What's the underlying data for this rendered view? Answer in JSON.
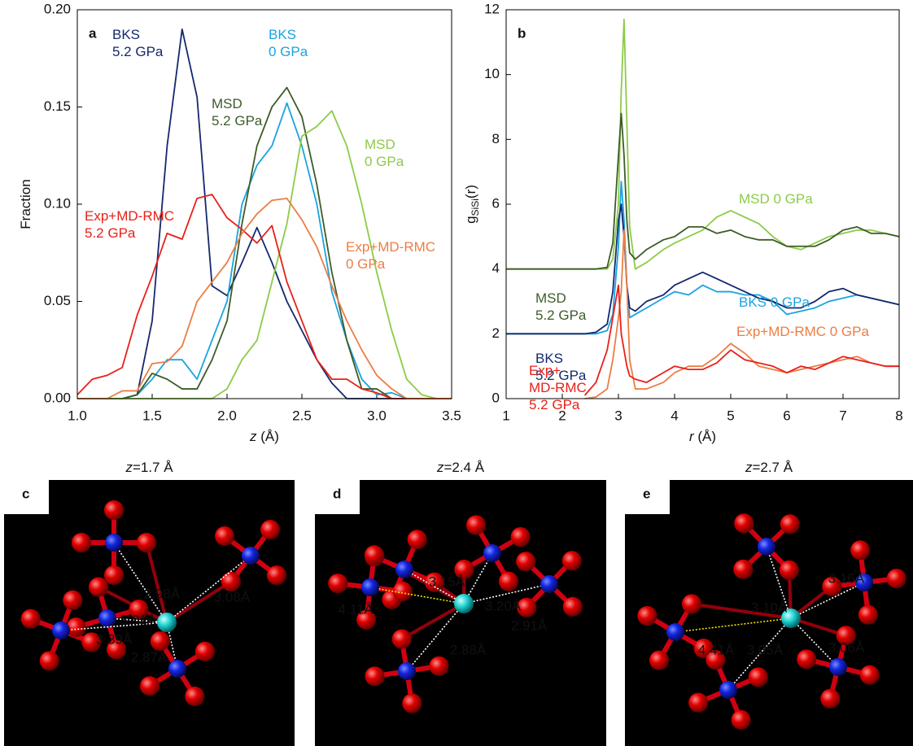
{
  "chart_data": [
    {
      "type": "line",
      "panel_letter": "a",
      "ylabel": "Fraction",
      "xlabel_var": "z",
      "xlabel_rest": " (Å)",
      "x": [
        1.0,
        1.1,
        1.2,
        1.3,
        1.4,
        1.5,
        1.6,
        1.7,
        1.8,
        1.9,
        2.0,
        2.1,
        2.2,
        2.3,
        2.4,
        2.5,
        2.6,
        2.7,
        2.8,
        2.9,
        3.0,
        3.1,
        3.2,
        3.3,
        3.4,
        3.5
      ],
      "xlim": [
        1.0,
        3.5
      ],
      "xticks": [
        {
          "value": 1.0,
          "label": "1.0"
        },
        {
          "value": 1.5,
          "label": "1.5"
        },
        {
          "value": 2.0,
          "label": "2.0"
        },
        {
          "value": 2.5,
          "label": "2.5"
        },
        {
          "value": 3.0,
          "label": "3.0"
        },
        {
          "value": 3.5,
          "label": "3.5"
        }
      ],
      "ylim": [
        0,
        0.2
      ],
      "yticks": [
        {
          "value": 0,
          "label": "0.00"
        },
        {
          "value": 0.05,
          "label": "0.05"
        },
        {
          "value": 0.1,
          "label": "0.10"
        },
        {
          "value": 0.15,
          "label": "0.15"
        },
        {
          "value": 0.2,
          "label": "0.20"
        }
      ],
      "series": [
        {
          "name": "BKS\n5.2 GPa",
          "color": "#14286e",
          "values": [
            0,
            0,
            0,
            0,
            0.002,
            0.04,
            0.13,
            0.19,
            0.155,
            0.058,
            0.053,
            0.07,
            0.088,
            0.07,
            0.05,
            0.035,
            0.02,
            0.008,
            0,
            0,
            0,
            0,
            0,
            0,
            0,
            0
          ]
        },
        {
          "name": "BKS\n0 GPa",
          "color": "#1aa3e0",
          "values": [
            0,
            0,
            0,
            0,
            0.002,
            0.01,
            0.02,
            0.02,
            0.01,
            0.03,
            0.05,
            0.1,
            0.12,
            0.13,
            0.152,
            0.13,
            0.1,
            0.055,
            0.03,
            0.01,
            0.002,
            0.003,
            0,
            0,
            0,
            0
          ]
        },
        {
          "name": "MSD\n5.2 GPa",
          "color": "#3d5c28",
          "values": [
            0,
            0,
            0,
            0,
            0.002,
            0.013,
            0.01,
            0.005,
            0.005,
            0.02,
            0.04,
            0.09,
            0.13,
            0.15,
            0.16,
            0.145,
            0.11,
            0.065,
            0.03,
            0.005,
            0.005,
            0,
            0,
            0,
            0,
            0
          ]
        },
        {
          "name": "MSD\n0 GPa",
          "color": "#8ccb48",
          "values": [
            0,
            0,
            0,
            0,
            0,
            0,
            0,
            0,
            0,
            0,
            0.005,
            0.02,
            0.03,
            0.06,
            0.09,
            0.135,
            0.14,
            0.148,
            0.13,
            0.1,
            0.065,
            0.035,
            0.01,
            0.002,
            0,
            0
          ]
        },
        {
          "name": "Exp+MD-RMC\n5.2 GPa",
          "color": "#e8201a",
          "values": [
            0.002,
            0.01,
            0.012,
            0.016,
            0.043,
            0.063,
            0.085,
            0.082,
            0.103,
            0.105,
            0.093,
            0.087,
            0.08,
            0.089,
            0.06,
            0.04,
            0.02,
            0.01,
            0.01,
            0.005,
            0.003,
            0,
            0,
            0,
            0,
            0
          ]
        },
        {
          "name": "Exp+MD-RMC\n0 GPa",
          "color": "#ec7d44",
          "values": [
            0,
            0,
            0,
            0.004,
            0.004,
            0.018,
            0.019,
            0.027,
            0.05,
            0.06,
            0.07,
            0.085,
            0.095,
            0.102,
            0.103,
            0.092,
            0.078,
            0.058,
            0.04,
            0.025,
            0.012,
            0.005,
            0,
            0,
            0,
            0
          ]
        }
      ]
    },
    {
      "type": "line",
      "panel_letter": "b",
      "ylabel": "g",
      "ylabel_sub": "SiSi",
      "ylabel_end": "(r)",
      "xlabel_var": "r",
      "xlabel_rest": " (Å)",
      "x": [
        1,
        2,
        2.4,
        2.6,
        2.8,
        2.9,
        3.0,
        3.05,
        3.1,
        3.15,
        3.2,
        3.3,
        3.5,
        3.8,
        4.0,
        4.25,
        4.5,
        4.75,
        5.0,
        5.25,
        5.5,
        5.75,
        6.0,
        6.25,
        6.5,
        6.75,
        7.0,
        7.25,
        7.5,
        7.75,
        8.0
      ],
      "xlim": [
        1,
        8
      ],
      "xticks": [
        1,
        2,
        3,
        4,
        5,
        6,
        7,
        8
      ],
      "ylim": [
        0,
        12
      ],
      "yticks": [
        0,
        2,
        4,
        6,
        8,
        10,
        12
      ],
      "series": [
        {
          "name": "MSD 0 GPa",
          "color": "#8ccb48",
          "values": [
            4,
            4,
            4,
            4,
            4.0,
            4.3,
            6.0,
            9.5,
            11.7,
            8.5,
            5.3,
            4.0,
            4.2,
            4.6,
            4.8,
            5.0,
            5.2,
            5.6,
            5.8,
            5.6,
            5.4,
            5.0,
            4.7,
            4.6,
            4.8,
            5.0,
            5.1,
            5.2,
            5.2,
            5.1,
            5.0
          ]
        },
        {
          "name": "MSD\n5.2 GPa",
          "color": "#3d5c28",
          "values": [
            4,
            4,
            4,
            4,
            4.05,
            4.8,
            7.5,
            8.8,
            7.5,
            5.5,
            4.5,
            4.3,
            4.6,
            4.9,
            5.0,
            5.3,
            5.3,
            5.1,
            5.2,
            5.0,
            4.9,
            4.9,
            4.7,
            4.7,
            4.7,
            4.9,
            5.2,
            5.3,
            5.1,
            5.1,
            5.0
          ]
        },
        {
          "name": "BKS 0 GPa",
          "color": "#1aa3e0",
          "values": [
            2,
            2,
            2,
            2,
            2.1,
            2.6,
            4.7,
            6.7,
            5.5,
            3.5,
            2.5,
            2.6,
            2.8,
            3.1,
            3.3,
            3.2,
            3.5,
            3.3,
            3.3,
            3.2,
            3.2,
            3.0,
            2.6,
            2.7,
            2.8,
            3.0,
            3.1,
            3.2,
            3.1,
            3.0,
            2.9
          ]
        },
        {
          "name": "BKS\n5.2 GPa",
          "color": "#14286e",
          "values": [
            2,
            2,
            2,
            2.05,
            2.3,
            3.3,
            5.5,
            6.0,
            5.0,
            3.5,
            2.8,
            2.7,
            3.0,
            3.2,
            3.5,
            3.7,
            3.9,
            3.7,
            3.5,
            3.3,
            3.1,
            3.0,
            2.8,
            2.8,
            3.0,
            3.3,
            3.4,
            3.2,
            3.1,
            3.0,
            2.9
          ]
        },
        {
          "name": "Exp+MD-RMC 0 GPa",
          "color": "#ec7d44",
          "values": [
            null,
            null,
            0,
            0.05,
            0.3,
            1.2,
            2.5,
            3.3,
            5.2,
            3.5,
            1.2,
            0.3,
            0.3,
            0.5,
            0.8,
            1.0,
            1.0,
            1.3,
            1.7,
            1.4,
            1.0,
            0.9,
            0.8,
            0.9,
            1.0,
            1.1,
            1.2,
            1.3,
            1.1,
            1.0,
            1.0
          ]
        },
        {
          "name": "Exp+\nMD-RMC\n5.2 GPa",
          "color": "#e8201a",
          "values": [
            null,
            null,
            0.1,
            0.5,
            1.5,
            2.5,
            3.5,
            2.0,
            1.5,
            1.0,
            0.7,
            0.6,
            0.5,
            0.8,
            1.0,
            0.9,
            0.9,
            1.1,
            1.5,
            1.2,
            1.1,
            1.0,
            0.8,
            1.0,
            0.9,
            1.1,
            1.3,
            1.2,
            1.1,
            1.0,
            1.0
          ]
        }
      ]
    }
  ],
  "panels": [
    {
      "letter": "c",
      "title_var": "z",
      "title_rest": "=1.7 Å",
      "distances": [
        {
          "text": "2.98Å",
          "color": "#ffffff"
        },
        {
          "text": "3.08Å",
          "color": "#ffffff"
        },
        {
          "text": "3.01Å",
          "color": "#ffffff"
        },
        {
          "text": "3.39Å",
          "color": "#ffffff"
        },
        {
          "text": "2.87Å",
          "color": "#ffffff"
        }
      ]
    },
    {
      "letter": "d",
      "title_var": "z",
      "title_rest": "=2.4 Å",
      "distances": [
        {
          "text": "3.15Å",
          "color": "#ffffff"
        },
        {
          "text": "3.20Å",
          "color": "#ffffff"
        },
        {
          "text": "4.11Å",
          "color": "#f2e600"
        },
        {
          "text": "2.91Å",
          "color": "#ffffff"
        },
        {
          "text": "2.88Å",
          "color": "#ffffff"
        }
      ]
    },
    {
      "letter": "e",
      "title_var": "z",
      "title_rest": "=2.7 Å",
      "distances": [
        {
          "text": "3.10Å",
          "color": "#ffffff"
        },
        {
          "text": "3.16Å",
          "color": "#ffffff"
        },
        {
          "text": "4.41Å",
          "color": "#f2e600"
        },
        {
          "text": "3.05Å",
          "color": "#ffffff"
        },
        {
          "text": "3.06Å",
          "color": "#ffffff"
        }
      ]
    }
  ]
}
